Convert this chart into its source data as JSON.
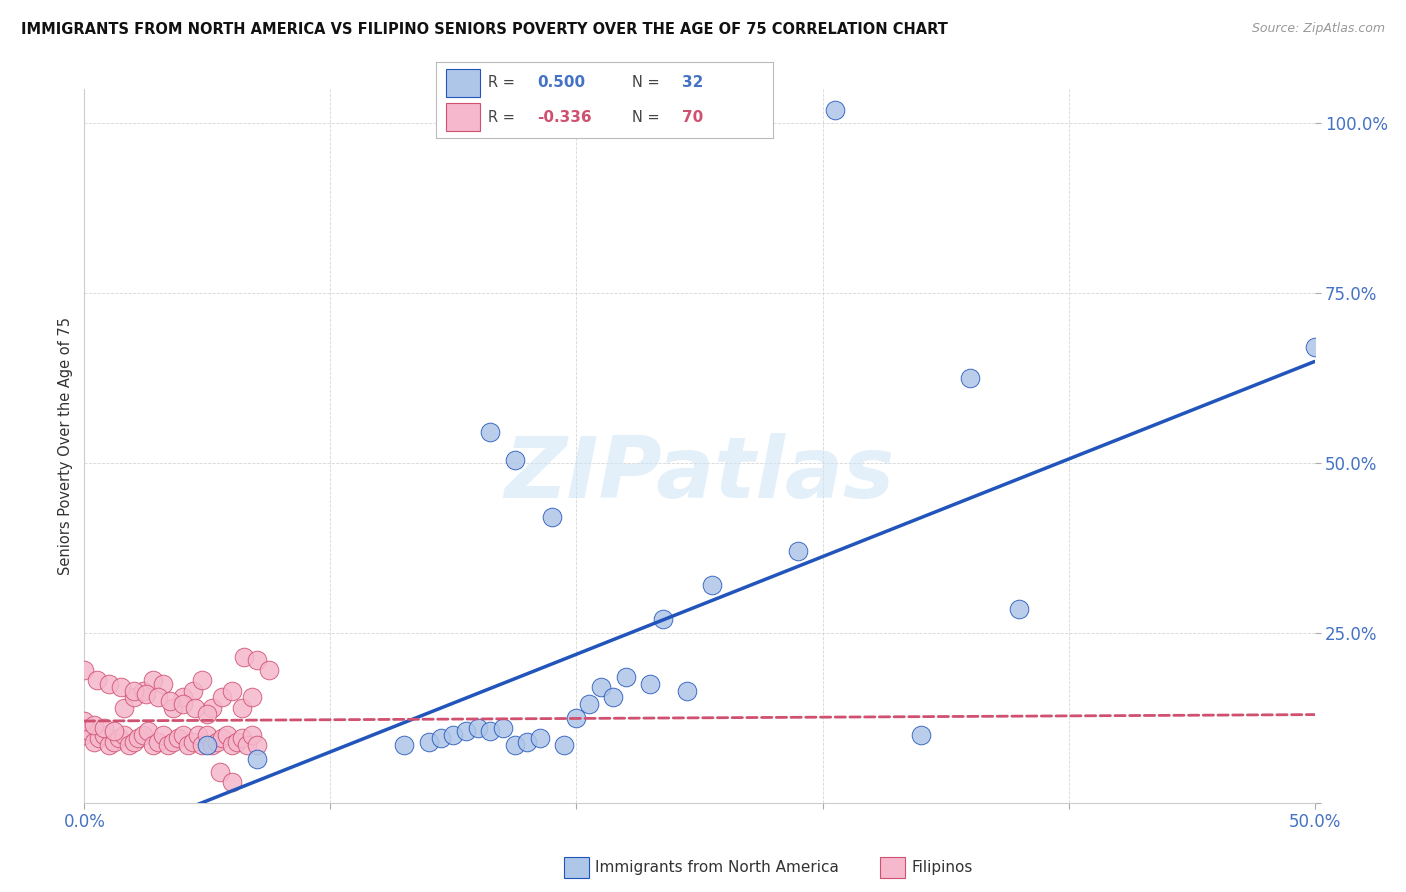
{
  "title": "IMMIGRANTS FROM NORTH AMERICA VS FILIPINO SENIORS POVERTY OVER THE AGE OF 75 CORRELATION CHART",
  "source": "Source: ZipAtlas.com",
  "ylabel": "Seniors Poverty Over the Age of 75",
  "xlim": [
    0.0,
    0.5
  ],
  "ylim": [
    0.0,
    1.05
  ],
  "blue_color": "#aec6e8",
  "blue_line_color": "#2255bb",
  "pink_color": "#f5b8cc",
  "pink_line_color": "#d05070",
  "legend_label_blue": "Immigrants from North America",
  "legend_label_pink": "Filipinos",
  "watermark_text": "ZIPatlas",
  "blue_scatter_x": [
    0.305,
    0.165,
    0.175,
    0.19,
    0.22,
    0.235,
    0.255,
    0.29,
    0.34,
    0.36,
    0.38,
    0.5,
    0.13,
    0.14,
    0.145,
    0.15,
    0.155,
    0.16,
    0.165,
    0.17,
    0.175,
    0.18,
    0.185,
    0.195,
    0.2,
    0.205,
    0.21,
    0.215,
    0.23,
    0.245,
    0.05,
    0.07
  ],
  "blue_scatter_y": [
    1.02,
    0.545,
    0.505,
    0.42,
    0.185,
    0.27,
    0.32,
    0.37,
    0.1,
    0.625,
    0.285,
    0.67,
    0.085,
    0.09,
    0.095,
    0.1,
    0.105,
    0.11,
    0.105,
    0.11,
    0.085,
    0.09,
    0.095,
    0.085,
    0.125,
    0.145,
    0.17,
    0.155,
    0.175,
    0.165,
    0.085,
    0.065
  ],
  "pink_scatter_x": [
    0.0,
    0.002,
    0.004,
    0.006,
    0.008,
    0.01,
    0.012,
    0.014,
    0.016,
    0.018,
    0.02,
    0.022,
    0.024,
    0.026,
    0.028,
    0.03,
    0.032,
    0.034,
    0.036,
    0.038,
    0.04,
    0.042,
    0.044,
    0.046,
    0.048,
    0.05,
    0.052,
    0.054,
    0.056,
    0.058,
    0.06,
    0.062,
    0.064,
    0.066,
    0.068,
    0.07,
    0.0,
    0.004,
    0.008,
    0.012,
    0.016,
    0.02,
    0.024,
    0.028,
    0.032,
    0.036,
    0.04,
    0.044,
    0.048,
    0.052,
    0.056,
    0.06,
    0.064,
    0.068,
    0.0,
    0.005,
    0.01,
    0.015,
    0.02,
    0.025,
    0.03,
    0.035,
    0.04,
    0.045,
    0.05,
    0.055,
    0.06,
    0.065,
    0.07,
    0.075
  ],
  "pink_scatter_y": [
    0.1,
    0.105,
    0.09,
    0.095,
    0.1,
    0.085,
    0.09,
    0.095,
    0.1,
    0.085,
    0.09,
    0.095,
    0.1,
    0.105,
    0.085,
    0.09,
    0.1,
    0.085,
    0.09,
    0.095,
    0.1,
    0.085,
    0.09,
    0.1,
    0.085,
    0.1,
    0.085,
    0.09,
    0.095,
    0.1,
    0.085,
    0.09,
    0.095,
    0.085,
    0.1,
    0.085,
    0.12,
    0.115,
    0.11,
    0.105,
    0.14,
    0.155,
    0.165,
    0.18,
    0.175,
    0.14,
    0.155,
    0.165,
    0.18,
    0.14,
    0.155,
    0.165,
    0.14,
    0.155,
    0.195,
    0.18,
    0.175,
    0.17,
    0.165,
    0.16,
    0.155,
    0.15,
    0.145,
    0.14,
    0.13,
    0.045,
    0.03,
    0.215,
    0.21,
    0.195
  ]
}
